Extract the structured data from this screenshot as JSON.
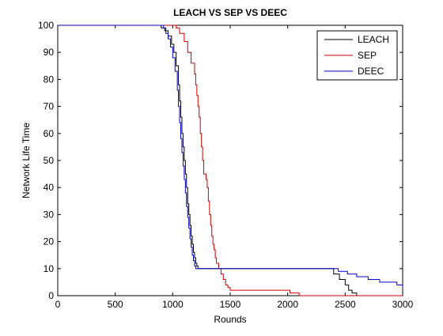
{
  "chart_data": {
    "type": "line",
    "title": "LEACH VS SEP VS DEEC",
    "xlabel": "Rounds",
    "ylabel": "Network Life Time",
    "xlim": [
      0,
      3000
    ],
    "ylim": [
      0,
      100
    ],
    "xticks": [
      0,
      500,
      1000,
      1500,
      2000,
      2500,
      3000
    ],
    "yticks": [
      0,
      10,
      20,
      30,
      40,
      50,
      60,
      70,
      80,
      90,
      100
    ],
    "grid": false,
    "legend_position": "top-right",
    "series": [
      {
        "name": "LEACH",
        "color": "#000000",
        "x": [
          0,
          880,
          900,
          930,
          960,
          990,
          1010,
          1030,
          1050,
          1060,
          1070,
          1080,
          1090,
          1100,
          1110,
          1120,
          1130,
          1140,
          1150,
          1160,
          1170,
          1180,
          1190,
          1200,
          1210,
          1220,
          1250,
          1300,
          1500,
          2000,
          2350,
          2400,
          2450,
          2500,
          2530,
          2560,
          2600,
          3000
        ],
        "y": [
          100,
          100,
          99,
          98,
          96,
          93,
          90,
          85,
          78,
          72,
          66,
          60,
          55,
          50,
          45,
          40,
          34,
          30,
          26,
          22,
          19,
          16,
          14,
          12,
          11,
          10,
          10,
          10,
          10,
          10,
          10,
          8,
          6,
          4,
          2,
          1,
          0,
          0
        ]
      },
      {
        "name": "SEP",
        "color": "#cc0000",
        "x": [
          0,
          1000,
          1030,
          1060,
          1100,
          1130,
          1160,
          1190,
          1200,
          1210,
          1220,
          1230,
          1240,
          1250,
          1260,
          1270,
          1290,
          1300,
          1310,
          1320,
          1330,
          1340,
          1350,
          1360,
          1370,
          1380,
          1400,
          1420,
          1440,
          1460,
          1480,
          1500,
          1520,
          1550,
          1600,
          2000,
          2020,
          2050,
          2100,
          3000
        ],
        "y": [
          100,
          100,
          99,
          97,
          94,
          90,
          86,
          82,
          78,
          74,
          70,
          66,
          60,
          55,
          50,
          45,
          43,
          40,
          35,
          30,
          26,
          22,
          19,
          17,
          14,
          12,
          10,
          8,
          6,
          4,
          3,
          2,
          2,
          2,
          2,
          2,
          1,
          1,
          0,
          0
        ]
      },
      {
        "name": "DEEC",
        "color": "#0000cc",
        "x": [
          0,
          900,
          920,
          940,
          960,
          980,
          1000,
          1020,
          1040,
          1050,
          1060,
          1070,
          1080,
          1090,
          1100,
          1110,
          1120,
          1130,
          1140,
          1150,
          1160,
          1170,
          1180,
          1190,
          1200,
          1220,
          1250,
          1500,
          2000,
          2400,
          2440,
          2480,
          2520,
          2560,
          2600,
          2700,
          2800,
          2900,
          2950,
          3000
        ],
        "y": [
          100,
          100,
          99,
          97,
          95,
          92,
          88,
          83,
          76,
          70,
          64,
          58,
          53,
          48,
          43,
          38,
          33,
          29,
          25,
          21,
          18,
          15,
          13,
          11,
          10,
          10,
          10,
          10,
          10,
          10,
          9,
          9,
          8,
          8,
          7,
          6,
          5,
          5,
          4,
          3
        ]
      }
    ]
  }
}
